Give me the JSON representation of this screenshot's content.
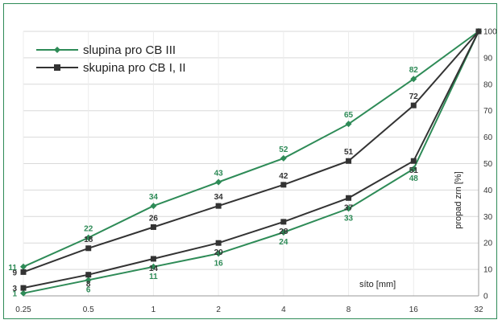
{
  "chart_data": {
    "type": "line",
    "x": [
      "0.25",
      "0.5",
      "1",
      "2",
      "4",
      "8",
      "16",
      "32"
    ],
    "xlabel": "síto [mm]",
    "ylabel": "propad zrn [%]",
    "ylim": [
      0,
      100
    ],
    "yticks": [
      0,
      10,
      20,
      30,
      40,
      50,
      60,
      70,
      80,
      90,
      100
    ],
    "grid": true,
    "legend_position": "top-left",
    "series": [
      {
        "name": "slupina pro CB III",
        "color": "#2e8b57",
        "marker": "diamond",
        "band": "upper",
        "values": [
          11,
          22,
          34,
          43,
          52,
          65,
          82,
          100
        ]
      },
      {
        "name": "slupina pro CB III",
        "color": "#2e8b57",
        "marker": "diamond",
        "band": "lower",
        "values": [
          1,
          6,
          11,
          16,
          24,
          33,
          48,
          100
        ]
      },
      {
        "name": "skupina pro CB I, II",
        "color": "#333333",
        "marker": "square",
        "band": "upper",
        "values": [
          9,
          18,
          26,
          34,
          42,
          51,
          72,
          100
        ]
      },
      {
        "name": "skupina pro CB I, II",
        "color": "#333333",
        "marker": "square",
        "band": "lower",
        "values": [
          3,
          8,
          14,
          20,
          28,
          37,
          51,
          100
        ]
      }
    ],
    "data_labels": [
      [
        "11",
        "22",
        "34",
        "43",
        "52",
        "65",
        "82",
        ""
      ],
      [
        "1",
        "6",
        "11",
        "16",
        "24",
        "33",
        "48",
        ""
      ],
      [
        "9",
        "18",
        "26",
        "34",
        "42",
        "51",
        "72",
        ""
      ],
      [
        "3",
        "8",
        "14",
        "20",
        "28",
        "37",
        "51",
        ""
      ]
    ]
  },
  "legend": {
    "items": [
      {
        "label": "slupina pro CB III",
        "color": "#2e8b57",
        "marker": "diamond"
      },
      {
        "label": "skupina pro CB I, II",
        "color": "#333333",
        "marker": "square"
      }
    ]
  }
}
